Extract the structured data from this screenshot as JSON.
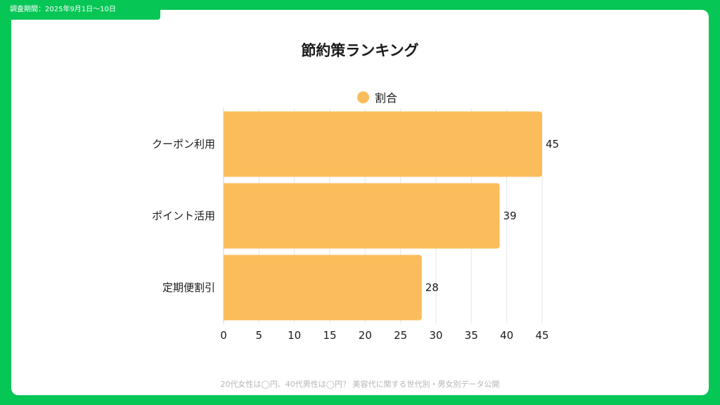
{
  "header": {
    "period": "調査期間：2025年9月1日～10日"
  },
  "footer": {
    "text": "20代女性は◯円、40代男性は◯円？ 美容代に関する世代別・男女別データ公開"
  },
  "colors": {
    "frame": "#06c655",
    "bar": "#fbbd5b",
    "grid": "#e5e5e5"
  },
  "chart_data": {
    "type": "bar",
    "orientation": "horizontal",
    "title": "節約策ランキング",
    "categories": [
      "クーポン利用",
      "ポイント活用",
      "定期便割引"
    ],
    "series": [
      {
        "name": "割合",
        "values": [
          45,
          39,
          28
        ]
      }
    ],
    "xlim": [
      0,
      45
    ],
    "xticks": [
      0,
      5,
      10,
      15,
      20,
      25,
      30,
      35,
      40,
      45
    ],
    "xlabel": "",
    "ylabel": "",
    "grid": true,
    "legend": "top-center",
    "data_labels": true
  }
}
